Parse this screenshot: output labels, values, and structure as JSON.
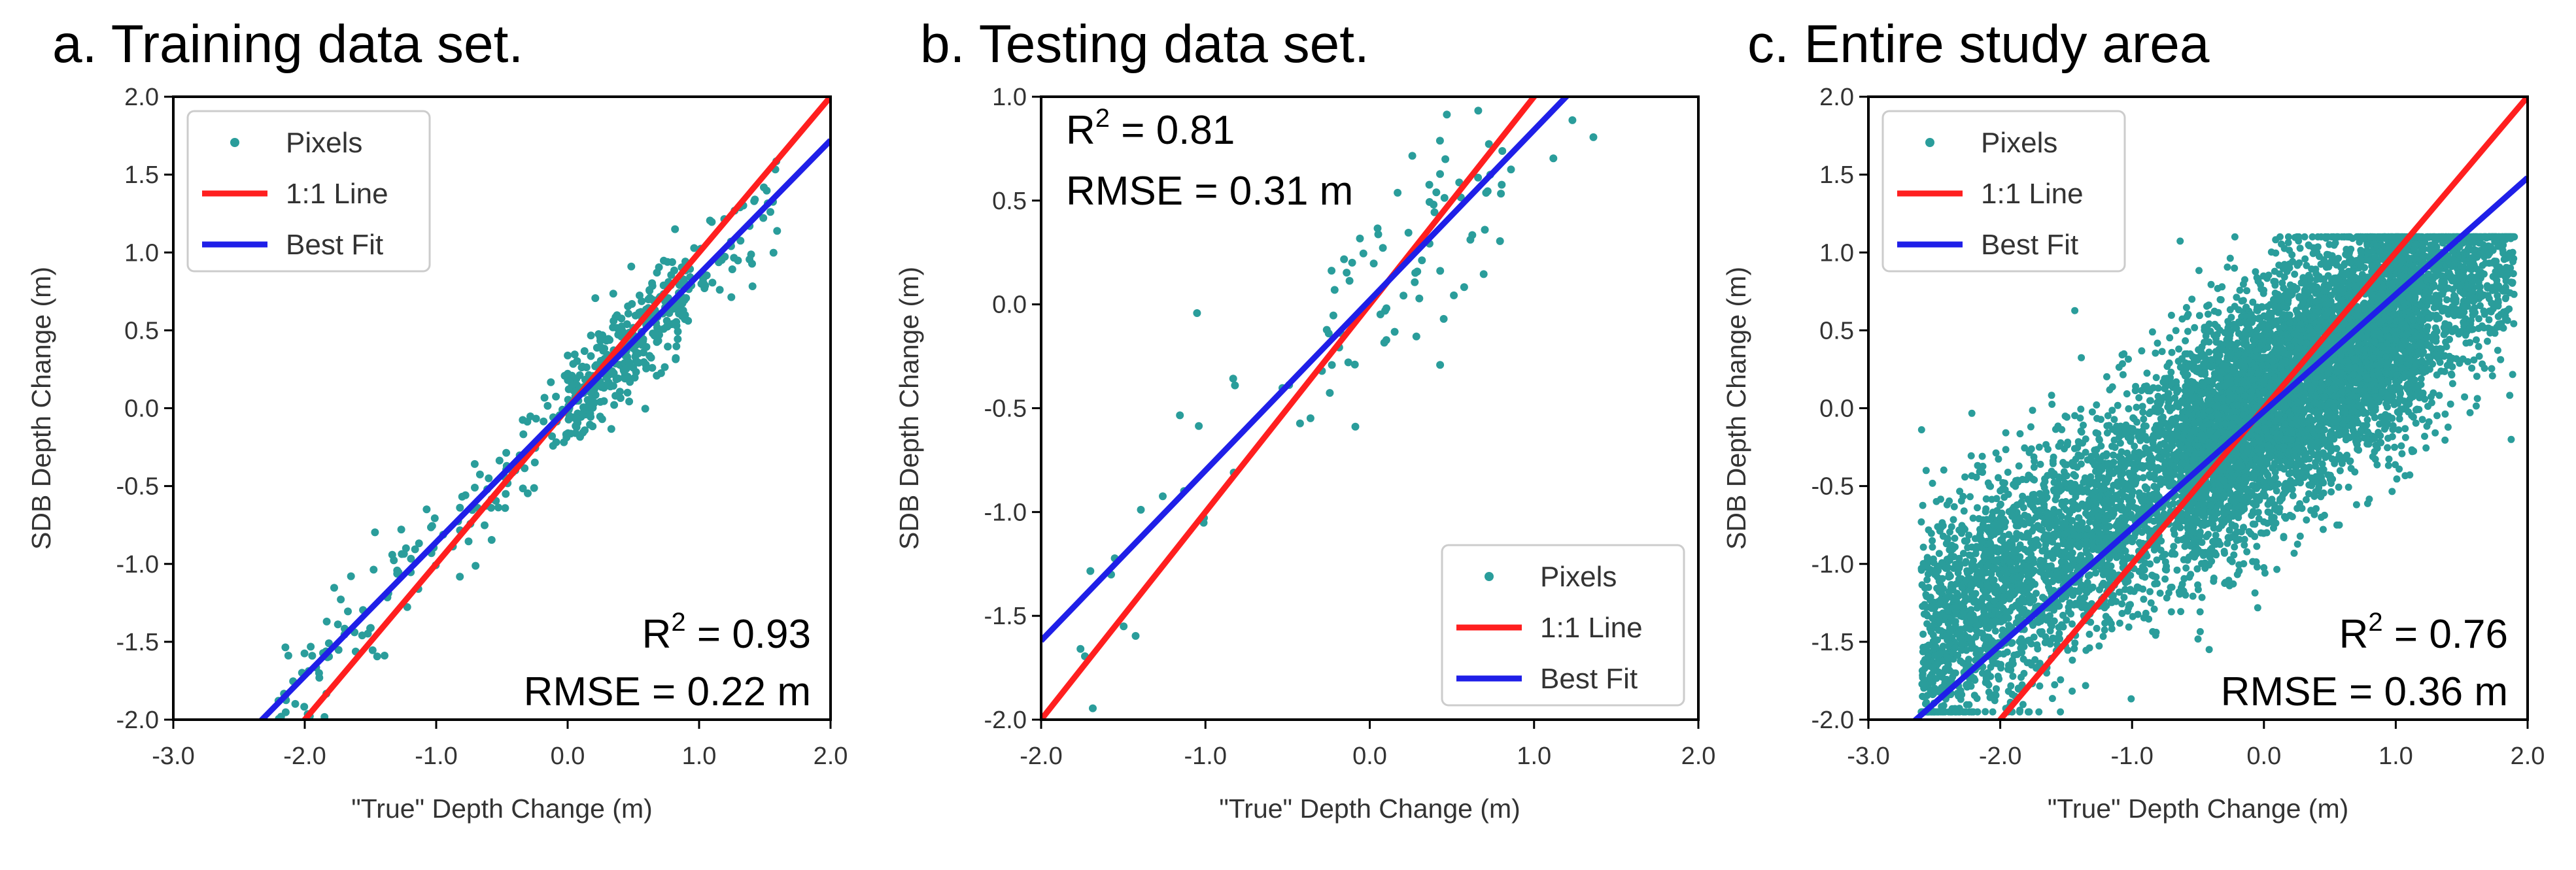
{
  "colors": {
    "pixels": "#2a9d9b",
    "one_to_one": "#ff1f1f",
    "best_fit": "#1f1fe8",
    "frame": "#000000"
  },
  "chart_data": [
    {
      "type": "scatter",
      "title": "a. Training data set.",
      "xlabel": "\"True\" Depth Change (m)",
      "ylabel": "SDB Depth Change (m)",
      "xlim": [
        -3.0,
        2.0
      ],
      "ylim": [
        -2.0,
        2.0
      ],
      "xticks": [
        "-3.0",
        "-2.0",
        "-1.0",
        "0.0",
        "1.0",
        "2.0"
      ],
      "yticks": [
        "-2.0",
        "-1.5",
        "-1.0",
        "-0.5",
        "0.0",
        "0.5",
        "1.0",
        "1.5",
        "2.0"
      ],
      "r2_label": "R",
      "r2_sup": "2",
      "r2_value": " = 0.93",
      "rmse": "RMSE = 0.22 m",
      "stats_position": "bottom-right",
      "legend_position": "top-left",
      "legend": [
        "Pixels",
        "1:1 Line",
        "Best Fit"
      ],
      "one_to_one": {
        "slope": 1.0,
        "intercept": 0.0
      },
      "best_fit": {
        "slope": 0.86,
        "intercept": 0.0
      },
      "scatter": {
        "n": 520,
        "xmin": -2.2,
        "xmax": 1.6,
        "slope": 0.86,
        "intercept": 0.0,
        "noise": 0.17,
        "cluster": {
          "x": 0.45,
          "spread": 0.45,
          "share": 0.55
        },
        "seed": 11
      }
    },
    {
      "type": "scatter",
      "title": "b. Testing data set.",
      "xlabel": "\"True\" Depth Change (m)",
      "ylabel": "SDB Depth Change (m)",
      "xlim": [
        -2.0,
        2.0
      ],
      "ylim": [
        -2.0,
        1.0
      ],
      "xticks": [
        "-2.0",
        "-1.0",
        "0.0",
        "1.0",
        "2.0"
      ],
      "yticks": [
        "-2.0",
        "-1.5",
        "-1.0",
        "-0.5",
        "0.0",
        "0.5",
        "1.0"
      ],
      "r2_label": "R",
      "r2_sup": "2",
      "r2_value": " = 0.81",
      "rmse": "RMSE = 0.31 m",
      "stats_position": "top-left",
      "legend_position": "bottom-right",
      "legend": [
        "Pixels",
        "1:1 Line",
        "Best Fit"
      ],
      "one_to_one": {
        "slope": 1.0,
        "intercept": 0.0
      },
      "best_fit": {
        "slope": 0.82,
        "intercept": 0.02
      },
      "scatter": {
        "n": 110,
        "xmin": -1.9,
        "xmax": 1.4,
        "slope": 0.82,
        "intercept": 0.02,
        "noise": 0.26,
        "cluster": {
          "x": 0.25,
          "spread": 0.55,
          "share": 0.45
        },
        "seed": 23
      }
    },
    {
      "type": "scatter",
      "title": "c. Entire study area",
      "xlabel": "\"True\" Depth Change (m)",
      "ylabel": "SDB Depth Change (m)",
      "xlim": [
        -3.0,
        2.0
      ],
      "ylim": [
        -2.0,
        2.0
      ],
      "xticks": [
        "-3.0",
        "-2.0",
        "-1.0",
        "0.0",
        "1.0",
        "2.0"
      ],
      "yticks": [
        "-2.0",
        "-1.5",
        "-1.0",
        "-0.5",
        "0.0",
        "0.5",
        "1.0",
        "1.5",
        "2.0"
      ],
      "r2_label": "R",
      "r2_sup": "2",
      "r2_value": " = 0.76",
      "rmse": "RMSE = 0.36 m",
      "stats_position": "bottom-right",
      "legend_position": "top-left",
      "legend": [
        "Pixels",
        "1:1 Line",
        "Best Fit"
      ],
      "one_to_one": {
        "slope": 1.0,
        "intercept": 0.0
      },
      "best_fit": {
        "slope": 0.75,
        "intercept": -0.02
      },
      "scatter": {
        "n": 9000,
        "xmin": -2.6,
        "xmax": 1.9,
        "slope": 0.6,
        "intercept": 0.02,
        "noise": 0.38,
        "cluster": {
          "x": 0.3,
          "spread": 0.9,
          "share": 0.35
        },
        "clip": [
          -1.95,
          1.1
        ],
        "seed": 37
      }
    }
  ]
}
